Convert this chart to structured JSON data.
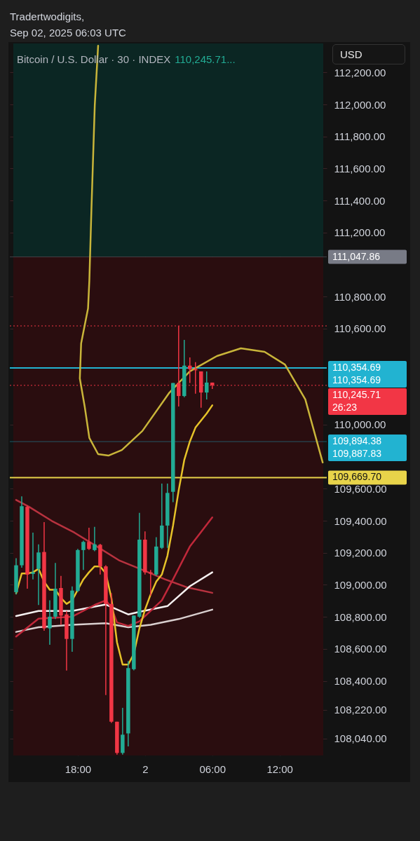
{
  "chart_data": {
    "type": "candlestick",
    "title": "Bitcoin / U.S. Dollar · 30 · INDEX",
    "ylabel": "USD",
    "annotations": [
      "Tradertwodigits,",
      "Sep 02, 2025 06:03 UTC",
      "110,245.71..."
    ],
    "x": [
      "2025-09-01T12:30",
      "2025-09-01T13:00",
      "2025-09-01T13:30",
      "2025-09-01T14:00",
      "2025-09-01T14:30",
      "2025-09-01T15:00",
      "2025-09-01T15:30",
      "2025-09-01T16:00",
      "2025-09-01T16:30",
      "2025-09-01T17:00",
      "2025-09-01T17:30",
      "2025-09-01T18:00",
      "2025-09-01T18:30",
      "2025-09-01T19:00",
      "2025-09-01T19:30",
      "2025-09-01T20:00",
      "2025-09-01T20:30",
      "2025-09-01T21:00",
      "2025-09-01T21:30",
      "2025-09-01T22:00",
      "2025-09-01T22:30",
      "2025-09-01T23:00",
      "2025-09-01T23:30",
      "2025-09-02T00:00",
      "2025-09-02T00:30",
      "2025-09-02T01:00",
      "2025-09-02T01:30",
      "2025-09-02T02:00",
      "2025-09-02T02:30",
      "2025-09-02T03:00",
      "2025-09-02T03:30",
      "2025-09-02T04:00",
      "2025-09-02T04:30",
      "2025-09-02T05:00",
      "2025-09-02T05:30",
      "2025-09-02T06:00"
    ],
    "ohlc": [
      [
        108954,
        109166,
        108940,
        109122
      ],
      [
        109122,
        109552,
        109107,
        109491
      ],
      [
        109487,
        109494,
        108976,
        109064
      ],
      [
        109068,
        109326,
        109034,
        109078
      ],
      [
        109100,
        109253,
        108874,
        109202
      ],
      [
        109205,
        109392,
        108713,
        108728
      ],
      [
        108728,
        108903,
        108626,
        108801
      ],
      [
        108801,
        109137,
        108786,
        108976
      ],
      [
        108980,
        109056,
        108750,
        108808
      ],
      [
        108815,
        108837,
        108465,
        108662
      ],
      [
        108662,
        108990,
        108582,
        108964
      ],
      [
        108962,
        109224,
        108954,
        109217
      ],
      [
        109217,
        109275,
        109093,
        109268
      ],
      [
        109268,
        109356,
        109217,
        109224
      ],
      [
        109217,
        109362,
        109210,
        109253
      ],
      [
        109250,
        109256,
        109064,
        109115
      ],
      [
        109115,
        109122,
        108312,
        108881
      ],
      [
        108881,
        108947,
        108137,
        108145
      ],
      [
        108145,
        108145,
        107940,
        107950
      ],
      [
        107950,
        108232,
        107940,
        108064
      ],
      [
        108072,
        108524,
        107991,
        108480
      ],
      [
        108473,
        108808,
        108466,
        108808
      ],
      [
        108801,
        109450,
        108794,
        109282
      ],
      [
        109282,
        109333,
        109064,
        109078
      ],
      [
        109078,
        109093,
        108932,
        109070
      ],
      [
        109064,
        109297,
        109056,
        109239
      ],
      [
        109231,
        109632,
        109224,
        109370
      ],
      [
        109370,
        109632,
        109231,
        109574
      ],
      [
        109581,
        110260,
        109516,
        110260
      ],
      [
        110260,
        110617,
        110114,
        110179
      ],
      [
        110179,
        110529,
        110172,
        110369
      ],
      [
        110369,
        110420,
        110260,
        110347
      ],
      [
        110347,
        110391,
        110194,
        110340
      ],
      [
        110333,
        110333,
        110106,
        110201
      ],
      [
        110201,
        110333,
        110158,
        110263
      ],
      [
        110263,
        110263,
        110223,
        110245.71
      ]
    ],
    "colors": [
      "#22ab94",
      "#22ab94",
      "#f23645",
      "#22ab94",
      "#22ab94",
      "#f23645",
      "#22ab94",
      "#22ab94",
      "#f23645",
      "#f23645",
      "#22ab94",
      "#22ab94",
      "#22ab94",
      "#f23645",
      "#22ab94",
      "#f23645",
      "#f23645",
      "#f23645",
      "#f23645",
      "#22ab94",
      "#22ab94",
      "#22ab94",
      "#22ab94",
      "#f23645",
      "#f23645",
      "#22ab94",
      "#22ab94",
      "#22ab94",
      "#22ab94",
      "#f23645",
      "#22ab94",
      "#f23645",
      "#f23645",
      "#f23645",
      "#22ab94",
      "#f23645"
    ],
    "series": [
      {
        "type": "line",
        "color": "#b8323f",
        "x": [
          "2025-09-01T12:30",
          "2025-09-01T13:39",
          "2025-09-01T15:41",
          "2025-09-01T17:42",
          "2025-09-01T19:43",
          "2025-09-01T21:44",
          "2025-09-01T23:46",
          "2025-09-02T01:47",
          "2025-09-02T03:48",
          "2025-09-02T06:00"
        ],
        "values": [
          109530,
          109487,
          109399,
          109326,
          109239,
          109151,
          109093,
          109034,
          108983,
          108950
        ]
      },
      {
        "type": "line",
        "color": "#d9cfcf",
        "x": [
          "2025-09-01T12:30",
          "2025-09-01T14:30",
          "2025-09-01T17:30",
          "2025-09-01T20:30",
          "2025-09-01T22:30",
          "2025-09-02T00:30",
          "2025-09-02T03:00",
          "2025-09-02T06:00"
        ],
        "values": [
          108706,
          108735,
          108750,
          108760,
          108735,
          108750,
          108786,
          108845
        ]
      },
      {
        "type": "line",
        "color": "#f5f0f0",
        "x": [
          "2025-09-01T12:30",
          "2025-09-01T14:30",
          "2025-09-01T17:30",
          "2025-09-01T20:30",
          "2025-09-01T22:30",
          "2025-09-01T23:30",
          "2025-09-02T02:00",
          "2025-09-02T04:00",
          "2025-09-02T06:00"
        ],
        "values": [
          108805,
          108837,
          108837,
          108877,
          108815,
          108831,
          108867,
          108991,
          109078
        ]
      },
      {
        "type": "line",
        "color": "#c0283a",
        "x": [
          "2025-09-01T12:30",
          "2025-09-01T14:30",
          "2025-09-01T17:30",
          "2025-09-01T19:30",
          "2025-09-01T20:30",
          "2025-09-01T21:00",
          "2025-09-01T21:30",
          "2025-09-01T22:30",
          "2025-09-01T23:30",
          "2025-09-02T01:30",
          "2025-09-02T02:30",
          "2025-09-02T04:00",
          "2025-09-02T06:00"
        ],
        "values": [
          108677,
          108789,
          108801,
          108874,
          108903,
          108859,
          108765,
          108743,
          108772,
          108903,
          109034,
          109239,
          109421
        ]
      },
      {
        "type": "line",
        "color": "#e6c229",
        "x": [
          "2025-09-01T12:30",
          "2025-09-01T13:00",
          "2025-09-01T13:30",
          "2025-09-01T14:00",
          "2025-09-01T14:30",
          "2025-09-01T15:00",
          "2025-09-01T15:30",
          "2025-09-01T16:00",
          "2025-09-01T16:30",
          "2025-09-01T17:00",
          "2025-09-01T17:30",
          "2025-09-01T18:00",
          "2025-09-01T18:30",
          "2025-09-01T19:00",
          "2025-09-01T19:30",
          "2025-09-01T20:00",
          "2025-09-01T20:30",
          "2025-09-01T21:00",
          "2025-09-01T21:30",
          "2025-09-01T22:00",
          "2025-09-01T22:30",
          "2025-09-01T23:00",
          "2025-09-01T23:30",
          "2025-09-02T00:00",
          "2025-09-02T00:30",
          "2025-09-02T01:00",
          "2025-09-02T01:30",
          "2025-09-02T02:00",
          "2025-09-02T02:30",
          "2025-09-02T03:00",
          "2025-09-02T03:30",
          "2025-09-02T04:00",
          "2025-09-02T04:30",
          "2025-09-02T05:30",
          "2025-09-02T06:00"
        ],
        "values": [
          108947,
          109071,
          109071,
          109078,
          109100,
          109020,
          108969,
          108969,
          108918,
          108881,
          108903,
          108969,
          109034,
          109078,
          109115,
          109115,
          109071,
          108918,
          108641,
          108502,
          108502,
          108568,
          108728,
          108845,
          108940,
          109020,
          109064,
          109181,
          109370,
          109589,
          109779,
          109895,
          109982,
          110070,
          110121
        ]
      },
      {
        "type": "line",
        "color": "#c9b53a",
        "x": [
          "2025-09-01T19:49",
          "2025-09-01T19:31",
          "2025-09-01T19:13",
          "2025-09-01T19:02",
          "2025-09-01T18:55",
          "2025-09-01T18:18",
          "2025-09-01T18:11",
          "2025-09-01T18:37",
          "2025-09-01T19:02",
          "2025-09-01T19:49",
          "2025-09-01T20:44",
          "2025-09-01T21:56",
          "2025-09-01T23:46",
          "2025-09-02T02:11",
          "2025-09-02T04:00",
          "2025-09-02T06:25",
          "2025-09-02T08:33",
          "2025-09-02T10:40",
          "2025-09-02T12:29",
          "2025-09-02T14:18",
          "2025-09-02T15:51"
        ],
        "values": [
          112367,
          111995,
          111339,
          110901,
          110726,
          110508,
          110289,
          110114,
          109917,
          109816,
          109807,
          109842,
          109961,
          110201,
          110333,
          110429,
          110477,
          110455,
          110376,
          110158,
          109764
        ]
      }
    ],
    "bands": [
      {
        "axis": "y",
        "from": 111047.86,
        "to": 112381,
        "color": "#0b2623"
      },
      {
        "axis": "y",
        "from": 107934,
        "to": 111047.86,
        "color": "#2a0d0f"
      }
    ],
    "ref_lines": [
      {
        "axis": "y",
        "value": 111047.86,
        "label": "111,047.86",
        "color": "#787b86"
      },
      {
        "axis": "y",
        "value": 110617,
        "color": "#f23645",
        "line_style": "dotted"
      },
      {
        "axis": "y",
        "value": 110354.69,
        "label": "110,354.69\n110,354.69",
        "color": "#22b3d1",
        "line_style": "solid"
      },
      {
        "axis": "y",
        "value": 110245.71,
        "label": "110,245.71\n26:23",
        "color": "#f23645",
        "line_style": "dotted"
      },
      {
        "axis": "y",
        "value": 109894.38,
        "label": "109,894.38\n109,887.83",
        "color": "#22b3d1"
      },
      {
        "axis": "y",
        "value": 109669.7,
        "label": "109,669.70",
        "color": "#e8d44a",
        "line_style": "solid"
      }
    ],
    "xlim": [
      "2025-09-01T12:15",
      "2025-09-02T15:54"
    ],
    "xticks": [
      {
        "value": "2025-09-01T18:00",
        "label": "18:00"
      },
      {
        "value": "2025-09-02",
        "label": "2"
      },
      {
        "value": "2025-09-02T06:00",
        "label": "06:00"
      },
      {
        "value": "2025-09-02T12:00",
        "label": "12:00"
      }
    ],
    "ylim": [
      107934,
      112381
    ],
    "yticks": [
      {
        "value": 112200,
        "label": "112,200.00"
      },
      {
        "value": 112000,
        "label": "112,000.00"
      },
      {
        "value": 111800,
        "label": "111,800.00"
      },
      {
        "value": 111600,
        "label": "111,600.00"
      },
      {
        "value": 111400,
        "label": "111,400.00"
      },
      {
        "value": 111200,
        "label": "111,200.00"
      },
      {
        "value": 110800,
        "label": "110,800.00"
      },
      {
        "value": 110600,
        "label": "110,600.00"
      },
      {
        "value": 110000,
        "label": "110,000.00"
      },
      {
        "value": 109600,
        "label": "109,600.00"
      },
      {
        "value": 109400,
        "label": "109,400.00"
      },
      {
        "value": 109200,
        "label": "109,200.00"
      },
      {
        "value": 109000,
        "label": "109,000.00"
      },
      {
        "value": 108800,
        "label": "108,800.00"
      },
      {
        "value": 108600,
        "label": "108,600.00"
      },
      {
        "value": 108400,
        "label": "108,400.00"
      },
      {
        "value": 108220,
        "label": "108,220.00"
      },
      {
        "value": 108040,
        "label": "108,040.00"
      }
    ],
    "grid": true
  }
}
